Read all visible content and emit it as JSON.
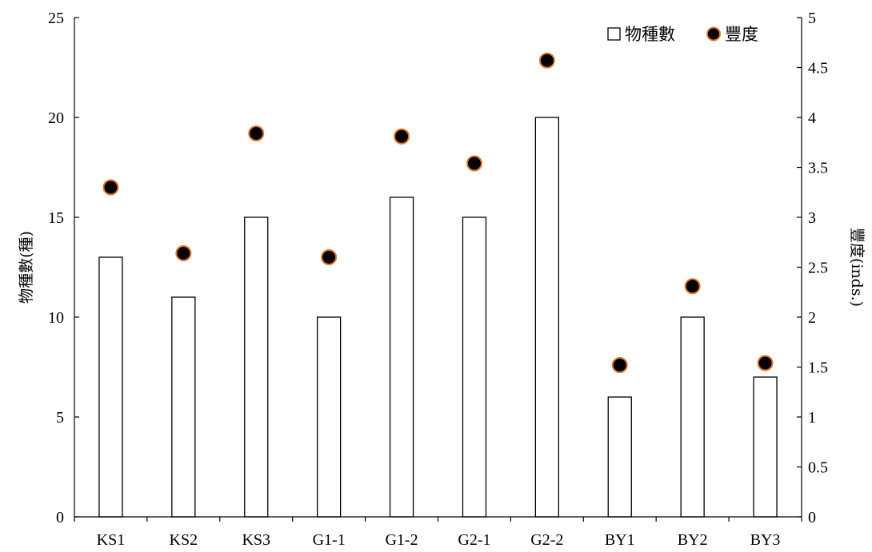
{
  "chart_data": {
    "type": "bar",
    "categories": [
      "KS1",
      "KS2",
      "KS3",
      "G1-1",
      "G1-2",
      "G2-1",
      "G2-2",
      "BY1",
      "BY2",
      "BY3"
    ],
    "series": [
      {
        "name": "物種數",
        "type": "bar",
        "axis": "left",
        "values": [
          13,
          11,
          15,
          10,
          16,
          15,
          20,
          6,
          10,
          7
        ]
      },
      {
        "name": "豐度",
        "type": "scatter",
        "axis": "right",
        "values": [
          3.3,
          2.64,
          3.84,
          2.6,
          3.81,
          3.54,
          4.57,
          1.52,
          2.31,
          1.54
        ]
      }
    ],
    "ylabel": "物種數(種)",
    "y2label": "豐度(inds.)",
    "ylim": [
      0,
      25
    ],
    "y2lim": [
      0,
      5
    ],
    "yticks": [
      "0",
      "5",
      "10",
      "15",
      "20",
      "25"
    ],
    "y2ticks": [
      "0",
      "0.5",
      "1",
      "1.5",
      "2",
      "2.5",
      "3",
      "3.5",
      "4",
      "4.5",
      "5"
    ],
    "legend_position": "top-right",
    "grid": false,
    "colors": {
      "bar_fill": "#ffffff",
      "bar_stroke": "#000000",
      "marker_fill": "#000000",
      "marker_stroke": "#e07a2a"
    }
  }
}
